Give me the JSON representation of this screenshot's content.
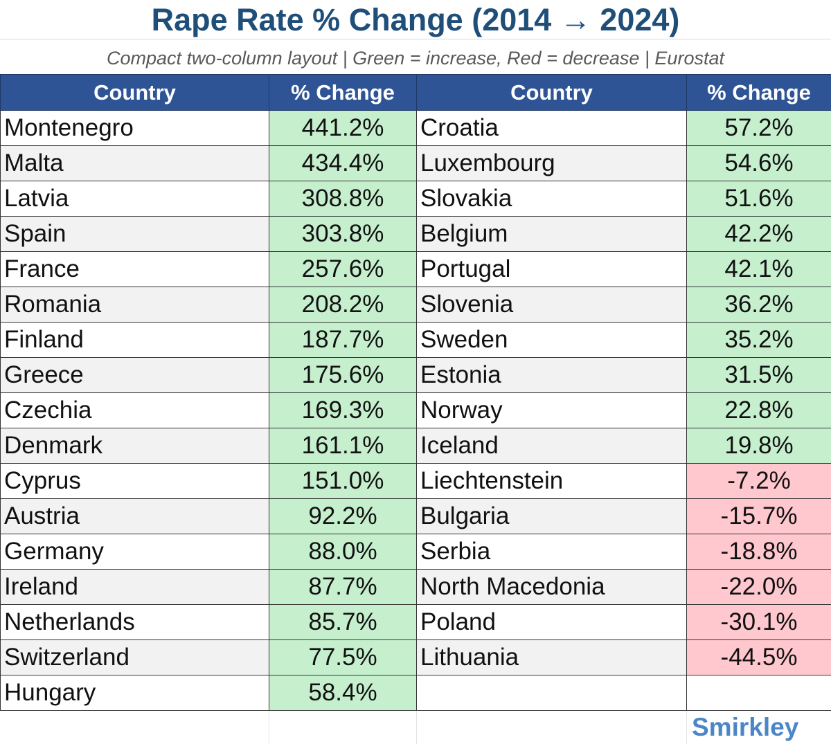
{
  "header": {
    "title": "Rape Rate % Change (2014 → 2024)",
    "subtitle": "Compact two-column layout | Green = increase, Red = decrease | Eurostat"
  },
  "columns": {
    "left_country": "Country",
    "left_change": "% Change",
    "right_country": "Country",
    "right_change": "% Change"
  },
  "colors": {
    "title": "#1f4e79",
    "header_bg": "#2f5496",
    "increase": "#c6efce",
    "decrease": "#ffc7ce",
    "logo": "#4a86c8"
  },
  "chart_data": {
    "type": "table",
    "title": "Rape Rate % Change (2014 → 2024)",
    "columns": [
      "Country",
      "% Change"
    ],
    "rows": [
      {
        "country": "Montenegro",
        "change": "441.2%",
        "value": 441.2
      },
      {
        "country": "Malta",
        "change": "434.4%",
        "value": 434.4
      },
      {
        "country": "Latvia",
        "change": "308.8%",
        "value": 308.8
      },
      {
        "country": "Spain",
        "change": "303.8%",
        "value": 303.8
      },
      {
        "country": "France",
        "change": "257.6%",
        "value": 257.6
      },
      {
        "country": "Romania",
        "change": "208.2%",
        "value": 208.2
      },
      {
        "country": "Finland",
        "change": "187.7%",
        "value": 187.7
      },
      {
        "country": "Greece",
        "change": "175.6%",
        "value": 175.6
      },
      {
        "country": "Czechia",
        "change": "169.3%",
        "value": 169.3
      },
      {
        "country": "Denmark",
        "change": "161.1%",
        "value": 161.1
      },
      {
        "country": "Cyprus",
        "change": "151.0%",
        "value": 151.0
      },
      {
        "country": "Austria",
        "change": "92.2%",
        "value": 92.2
      },
      {
        "country": "Germany",
        "change": "88.0%",
        "value": 88.0
      },
      {
        "country": "Ireland",
        "change": "87.7%",
        "value": 87.7
      },
      {
        "country": "Netherlands",
        "change": "85.7%",
        "value": 85.7
      },
      {
        "country": "Switzerland",
        "change": "77.5%",
        "value": 77.5
      },
      {
        "country": "Hungary",
        "change": "58.4%",
        "value": 58.4
      },
      {
        "country": "Croatia",
        "change": "57.2%",
        "value": 57.2
      },
      {
        "country": "Luxembourg",
        "change": "54.6%",
        "value": 54.6
      },
      {
        "country": "Slovakia",
        "change": "51.6%",
        "value": 51.6
      },
      {
        "country": "Belgium",
        "change": "42.2%",
        "value": 42.2
      },
      {
        "country": "Portugal",
        "change": "42.1%",
        "value": 42.1
      },
      {
        "country": "Slovenia",
        "change": "36.2%",
        "value": 36.2
      },
      {
        "country": "Sweden",
        "change": "35.2%",
        "value": 35.2
      },
      {
        "country": "Estonia",
        "change": "31.5%",
        "value": 31.5
      },
      {
        "country": "Norway",
        "change": "22.8%",
        "value": 22.8
      },
      {
        "country": "Iceland",
        "change": "19.8%",
        "value": 19.8
      },
      {
        "country": "Liechtenstein",
        "change": "-7.2%",
        "value": -7.2
      },
      {
        "country": "Bulgaria",
        "change": "-15.7%",
        "value": -15.7
      },
      {
        "country": "Serbia",
        "change": "-18.8%",
        "value": -18.8
      },
      {
        "country": "North Macedonia",
        "change": "-22.0%",
        "value": -22.0
      },
      {
        "country": "Poland",
        "change": "-30.1%",
        "value": -30.1
      },
      {
        "country": "Lithuania",
        "change": "-44.5%",
        "value": -44.5
      }
    ]
  },
  "footer": {
    "logo": "Smirkley"
  }
}
